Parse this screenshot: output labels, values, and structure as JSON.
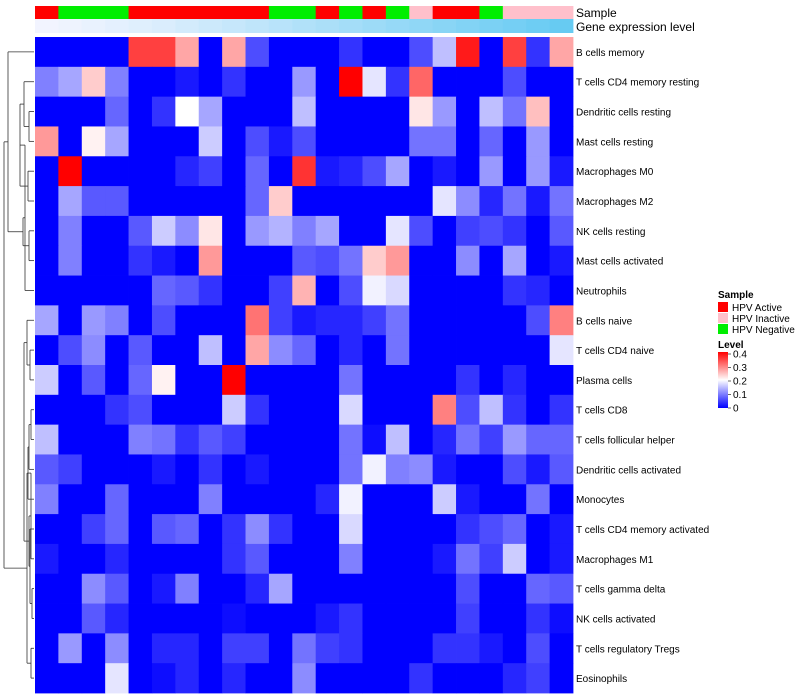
{
  "chart_data": {
    "type": "heatmap",
    "annotation_tracks": [
      {
        "name": "Sample",
        "values": [
          "HPV Active",
          "HPV Negative",
          "HPV Negative",
          "HPV Negative",
          "HPV Active",
          "HPV Active",
          "HPV Active",
          "HPV Active",
          "HPV Active",
          "HPV Active",
          "HPV Negative",
          "HPV Negative",
          "HPV Active",
          "HPV Negative",
          "HPV Active",
          "HPV Negative",
          "HPV Inactive",
          "HPV Active",
          "HPV Active",
          "HPV Negative",
          "HPV Inactive",
          "HPV Inactive",
          "HPV Inactive"
        ]
      },
      {
        "name": "Gene expression level",
        "values": [
          0.02,
          0.04,
          0.07,
          0.1,
          0.13,
          0.16,
          0.2,
          0.24,
          0.28,
          0.32,
          0.36,
          0.4,
          0.44,
          0.48,
          0.52,
          0.56,
          0.6,
          0.64,
          0.68,
          0.72,
          0.76,
          0.8,
          0.84
        ]
      }
    ],
    "rows": [
      "B cells memory",
      "T cells CD4 memory resting",
      "Dendritic cells resting",
      "Mast cells resting",
      "Macrophages M0",
      "Macrophages M2",
      "NK cells resting",
      "Mast cells activated",
      "Neutrophils",
      "B cells naive",
      "T cells CD4 naive",
      "Plasma cells",
      "T cells CD8",
      "T cells follicular helper",
      "Dendritic cells activated",
      "Monocytes",
      "T cells CD4 memory activated",
      "Macrophages M1",
      "T cells gamma delta",
      "NK cells activated",
      "T cells regulatory  Tregs",
      "Eosinophils"
    ],
    "matrix": [
      [
        0,
        0,
        0,
        0,
        0.35,
        0.35,
        0.27,
        0,
        0.27,
        0.06,
        0,
        0,
        0,
        0.04,
        0,
        0,
        0.06,
        0.15,
        0.38,
        0,
        0.35,
        0.04,
        0.27
      ],
      [
        0.1,
        0.13,
        0.24,
        0.1,
        0,
        0,
        0.02,
        0,
        0.04,
        0,
        0,
        0.12,
        0,
        0.4,
        0.18,
        0.04,
        0.32,
        0,
        0,
        0,
        0.06,
        0,
        0
      ],
      [
        0,
        0,
        0,
        0.08,
        0,
        0.04,
        0.2,
        0.13,
        0,
        0,
        0,
        0.15,
        0,
        0,
        0,
        0,
        0.22,
        0.12,
        0,
        0.15,
        0.09,
        0.25,
        0
      ],
      [
        0.28,
        0,
        0.21,
        0.13,
        0,
        0,
        0,
        0.16,
        0,
        0.06,
        0.02,
        0.06,
        0,
        0,
        0,
        0,
        0.09,
        0.09,
        0,
        0.08,
        0,
        0.12,
        0
      ],
      [
        0,
        0.4,
        0,
        0,
        0,
        0,
        0.03,
        0.05,
        0,
        0.08,
        0,
        0.36,
        0.02,
        0.03,
        0.06,
        0.13,
        0,
        0.02,
        0,
        0.12,
        0,
        0.12,
        0.02
      ],
      [
        0,
        0.13,
        0.07,
        0.07,
        0,
        0,
        0,
        0,
        0,
        0.08,
        0.24,
        0,
        0,
        0,
        0,
        0,
        0,
        0.18,
        0.11,
        0.03,
        0.09,
        0.02,
        0.09
      ],
      [
        0,
        0.1,
        0,
        0,
        0.07,
        0.16,
        0.11,
        0.22,
        0,
        0.12,
        0.14,
        0.1,
        0.13,
        0,
        0,
        0.18,
        0.06,
        0,
        0.05,
        0.06,
        0.04,
        0,
        0.07
      ],
      [
        0,
        0.1,
        0,
        0,
        0.04,
        0.02,
        0,
        0.28,
        0,
        0,
        0,
        0.07,
        0.06,
        0.09,
        0.24,
        0.28,
        0,
        0,
        0.11,
        0,
        0.13,
        0,
        0.02
      ],
      [
        0,
        0,
        0,
        0,
        0,
        0.08,
        0.07,
        0.04,
        0,
        0,
        0.05,
        0.26,
        0,
        0.06,
        0.19,
        0.17,
        0,
        0,
        0,
        0,
        0.04,
        0.03,
        0
      ],
      [
        0.13,
        0,
        0.12,
        0.1,
        0,
        0.06,
        0,
        0,
        0,
        0.31,
        0.05,
        0.02,
        0.03,
        0.03,
        0.05,
        0.09,
        0,
        0,
        0,
        0,
        0,
        0.06,
        0.3
      ],
      [
        0,
        0.06,
        0.11,
        0,
        0.07,
        0,
        0,
        0.15,
        0,
        0.27,
        0.11,
        0.08,
        0,
        0.03,
        0,
        0.09,
        0,
        0,
        0,
        0,
        0,
        0,
        0.18
      ],
      [
        0.16,
        0,
        0.07,
        0,
        0.08,
        0.21,
        0,
        0,
        0.4,
        0,
        0,
        0,
        0,
        0.09,
        0,
        0,
        0,
        0,
        0.04,
        0,
        0.03,
        0,
        0
      ],
      [
        0,
        0,
        0,
        0.04,
        0.06,
        0,
        0,
        0,
        0.16,
        0.04,
        0,
        0,
        0,
        0.17,
        0,
        0,
        0,
        0.3,
        0.06,
        0.15,
        0.04,
        0,
        0.04
      ],
      [
        0.15,
        0,
        0,
        0,
        0.1,
        0.09,
        0.04,
        0.07,
        0.05,
        0,
        0,
        0,
        0,
        0.09,
        0.01,
        0.15,
        0,
        0.03,
        0.09,
        0.05,
        0.12,
        0.08,
        0.08
      ],
      [
        0.07,
        0.05,
        0,
        0,
        0,
        0.02,
        0,
        0.04,
        0,
        0.02,
        0,
        0,
        0,
        0.09,
        0.19,
        0.1,
        0.11,
        0.02,
        0,
        0,
        0.06,
        0.02,
        0.07
      ],
      [
        0.1,
        0,
        0,
        0.08,
        0,
        0,
        0,
        0.1,
        0,
        0,
        0,
        0,
        0.03,
        0.19,
        0,
        0,
        0,
        0.16,
        0.02,
        0,
        0,
        0.09,
        0
      ],
      [
        0,
        0,
        0.05,
        0.08,
        0,
        0.07,
        0.08,
        0,
        0.04,
        0.11,
        0.04,
        0,
        0,
        0.17,
        0,
        0,
        0,
        0,
        0.04,
        0.06,
        0.08,
        0,
        0.02
      ],
      [
        0.02,
        0,
        0,
        0.03,
        0,
        0,
        0,
        0,
        0.04,
        0.07,
        0,
        0,
        0,
        0.1,
        0,
        0,
        0,
        0.02,
        0.09,
        0.05,
        0.16,
        0,
        0.02
      ],
      [
        0,
        0,
        0.11,
        0.07,
        0,
        0.02,
        0.1,
        0,
        0,
        0.03,
        0.13,
        0,
        0,
        0,
        0,
        0,
        0,
        0,
        0.06,
        0,
        0,
        0.08,
        0.07
      ],
      [
        0,
        0,
        0.07,
        0.03,
        0,
        0,
        0,
        0,
        0.01,
        0,
        0,
        0,
        0.02,
        0.04,
        0,
        0,
        0,
        0,
        0.05,
        0,
        0,
        0.04,
        0.01
      ],
      [
        0,
        0.12,
        0,
        0.11,
        0,
        0.03,
        0.03,
        0,
        0.05,
        0.05,
        0,
        0.09,
        0.05,
        0.04,
        0,
        0,
        0,
        0.04,
        0.04,
        0.02,
        0,
        0.06,
        0
      ],
      [
        0,
        0,
        0,
        0.18,
        0,
        0.01,
        0.03,
        0,
        0.03,
        0,
        0,
        0.11,
        0,
        0,
        0,
        0,
        0.04,
        0,
        0,
        0,
        0.03,
        0.05,
        0
      ]
    ],
    "colorscale": {
      "low": "#0000ff",
      "mid": "#ffffff",
      "high": "#ff0000",
      "min": 0,
      "mid_value": 0.2,
      "max": 0.4
    },
    "sample_colors": {
      "HPV Active": "#ff0000",
      "HPV Inactive": "#ffc0cb",
      "HPV Negative": "#00ee00"
    },
    "expression_colors": {
      "low": "#f5f5ff",
      "high": "#4cc3f0"
    },
    "legend": {
      "sample_title": "Sample",
      "sample_labels": [
        "HPV Active",
        "HPV Inactive",
        "HPV Negative"
      ],
      "level_title": "Level",
      "level_ticks": [
        0.4,
        0.3,
        0.2,
        0.1,
        0
      ],
      "level_tick_labels": [
        "0.4",
        "0.3",
        "0.2",
        "0.1",
        "0"
      ],
      "placement": "right"
    },
    "dendrogram": {
      "side": "left",
      "leaf_order": [
        0,
        1,
        2,
        3,
        4,
        5,
        6,
        7,
        8,
        9,
        10,
        11,
        12,
        13,
        14,
        15,
        16,
        17,
        18,
        19,
        20,
        21
      ],
      "merges": [
        [
          2,
          3,
          0.05
        ],
        [
          1,
          22,
          0.1
        ],
        [
          4,
          5,
          0.06
        ],
        [
          23,
          24,
          0.14
        ],
        [
          6,
          7,
          0.05
        ],
        [
          25,
          8,
          0.09
        ],
        [
          26,
          27,
          0.11
        ],
        [
          0,
          28,
          0.26
        ],
        [
          10,
          11,
          0.04
        ],
        [
          9,
          30,
          0.07
        ],
        [
          12,
          13,
          0.03
        ],
        [
          32,
          14,
          0.05
        ],
        [
          33,
          15,
          0.06
        ],
        [
          18,
          19,
          0.02
        ],
        [
          17,
          34,
          0.03
        ],
        [
          16,
          35,
          0.04
        ],
        [
          20,
          21,
          0.03
        ],
        [
          36,
          37,
          0.05
        ],
        [
          34,
          38,
          0.07
        ],
        [
          31,
          39,
          0.1
        ],
        [
          29,
          40,
          0.3
        ]
      ]
    }
  }
}
